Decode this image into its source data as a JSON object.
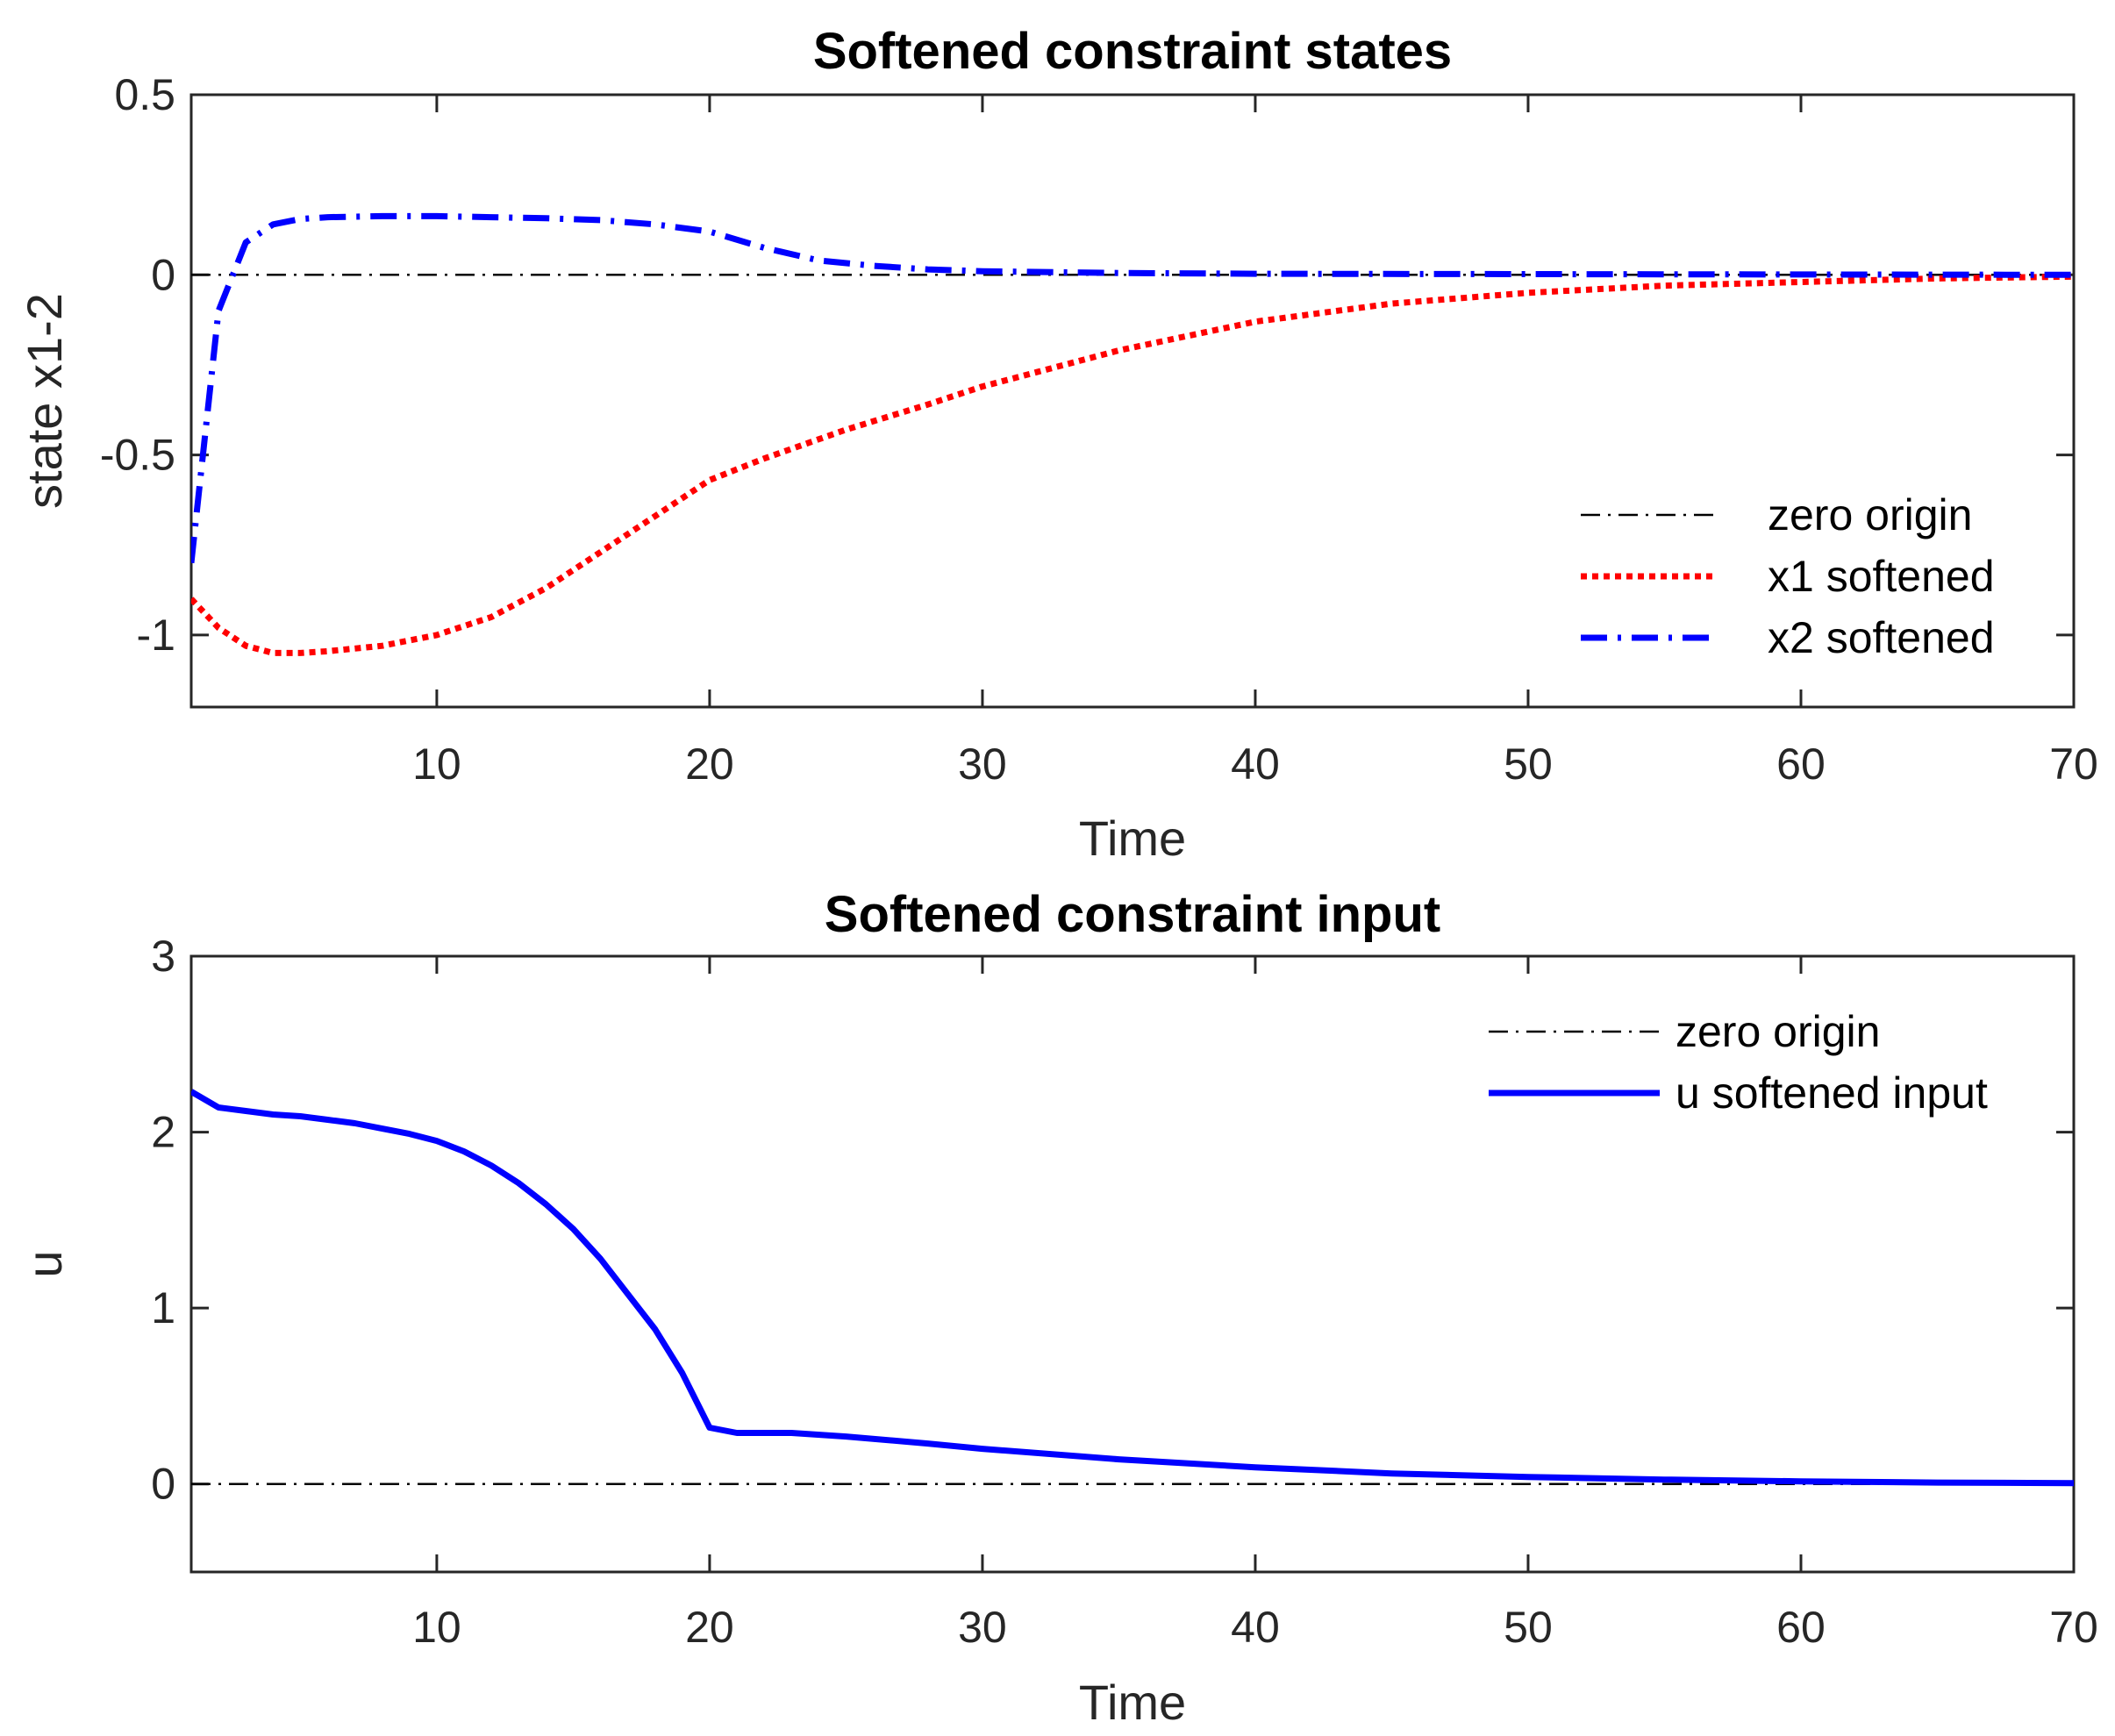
{
  "chart_data": [
    {
      "type": "line",
      "title": "Softened constraint states",
      "xlabel": "Time",
      "ylabel": "state x1-2",
      "xlim": [
        1,
        70
      ],
      "ylim": [
        -1.2,
        0.5
      ],
      "xticks": [
        10,
        20,
        30,
        40,
        50,
        60,
        70
      ],
      "yticks": [
        -1,
        -0.5,
        0,
        0.5
      ],
      "xtick_labels": [
        "10",
        "20",
        "30",
        "40",
        "50",
        "60",
        "70"
      ],
      "ytick_labels": [
        "-1",
        "-0.5",
        "0",
        "0.5"
      ],
      "legend": "upper-right",
      "series": [
        {
          "name": "zero origin",
          "style": "dash-dot",
          "color": "#000000",
          "x": [
            1,
            70
          ],
          "y": [
            0,
            0
          ]
        },
        {
          "name": "x1 softened",
          "style": "dotted",
          "color": "#ff0000",
          "x": [
            1,
            2,
            3,
            4,
            5,
            6,
            8,
            10,
            12,
            14,
            16,
            18,
            20,
            22,
            25,
            28,
            30,
            35,
            40,
            45,
            50,
            55,
            60,
            65,
            70
          ],
          "y": [
            -0.9,
            -0.98,
            -1.03,
            -1.05,
            -1.05,
            -1.045,
            -1.03,
            -1.0,
            -0.95,
            -0.87,
            -0.77,
            -0.67,
            -0.57,
            -0.51,
            -0.43,
            -0.36,
            -0.31,
            -0.21,
            -0.13,
            -0.08,
            -0.05,
            -0.03,
            -0.02,
            -0.01,
            -0.005
          ]
        },
        {
          "name": "x2 softened",
          "style": "dash-dot",
          "color": "#0000ff",
          "x": [
            1,
            2,
            3,
            4,
            5,
            6,
            8,
            10,
            12,
            14,
            16,
            18,
            20,
            22,
            24,
            26,
            28,
            30,
            35,
            40,
            50,
            60,
            70
          ],
          "y": [
            -0.8,
            -0.1,
            0.09,
            0.14,
            0.155,
            0.16,
            0.163,
            0.163,
            0.16,
            0.157,
            0.152,
            0.14,
            0.12,
            0.075,
            0.04,
            0.025,
            0.015,
            0.01,
            0.005,
            0.003,
            0.002,
            0.001,
            0.0
          ]
        }
      ]
    },
    {
      "type": "line",
      "title": "Softened constraint input",
      "xlabel": "Time",
      "ylabel": "u",
      "xlim": [
        1,
        70
      ],
      "ylim": [
        -0.5,
        3
      ],
      "xticks": [
        10,
        20,
        30,
        40,
        50,
        60,
        70
      ],
      "yticks": [
        0,
        1,
        2,
        3
      ],
      "xtick_labels": [
        "10",
        "20",
        "30",
        "40",
        "50",
        "60",
        "70"
      ],
      "ytick_labels": [
        "0",
        "1",
        "2",
        "3"
      ],
      "legend": "upper-right",
      "series": [
        {
          "name": "zero origin",
          "style": "dash-dot",
          "color": "#000000",
          "x": [
            1,
            70
          ],
          "y": [
            0,
            0
          ]
        },
        {
          "name": "u softened input",
          "style": "solid",
          "color": "#0000ff",
          "x": [
            1,
            2,
            3,
            4,
            5,
            6,
            7,
            8,
            9,
            10,
            11,
            12,
            13,
            14,
            15,
            16,
            17,
            18,
            19,
            20,
            21,
            22,
            23,
            25,
            28,
            30,
            35,
            40,
            45,
            50,
            55,
            60,
            65,
            70
          ],
          "y": [
            2.23,
            2.14,
            2.12,
            2.1,
            2.09,
            2.07,
            2.05,
            2.02,
            1.99,
            1.95,
            1.89,
            1.81,
            1.71,
            1.59,
            1.45,
            1.28,
            1.08,
            0.88,
            0.63,
            0.32,
            0.29,
            0.29,
            0.29,
            0.27,
            0.23,
            0.2,
            0.14,
            0.095,
            0.06,
            0.04,
            0.025,
            0.015,
            0.008,
            0.005
          ]
        }
      ]
    }
  ]
}
